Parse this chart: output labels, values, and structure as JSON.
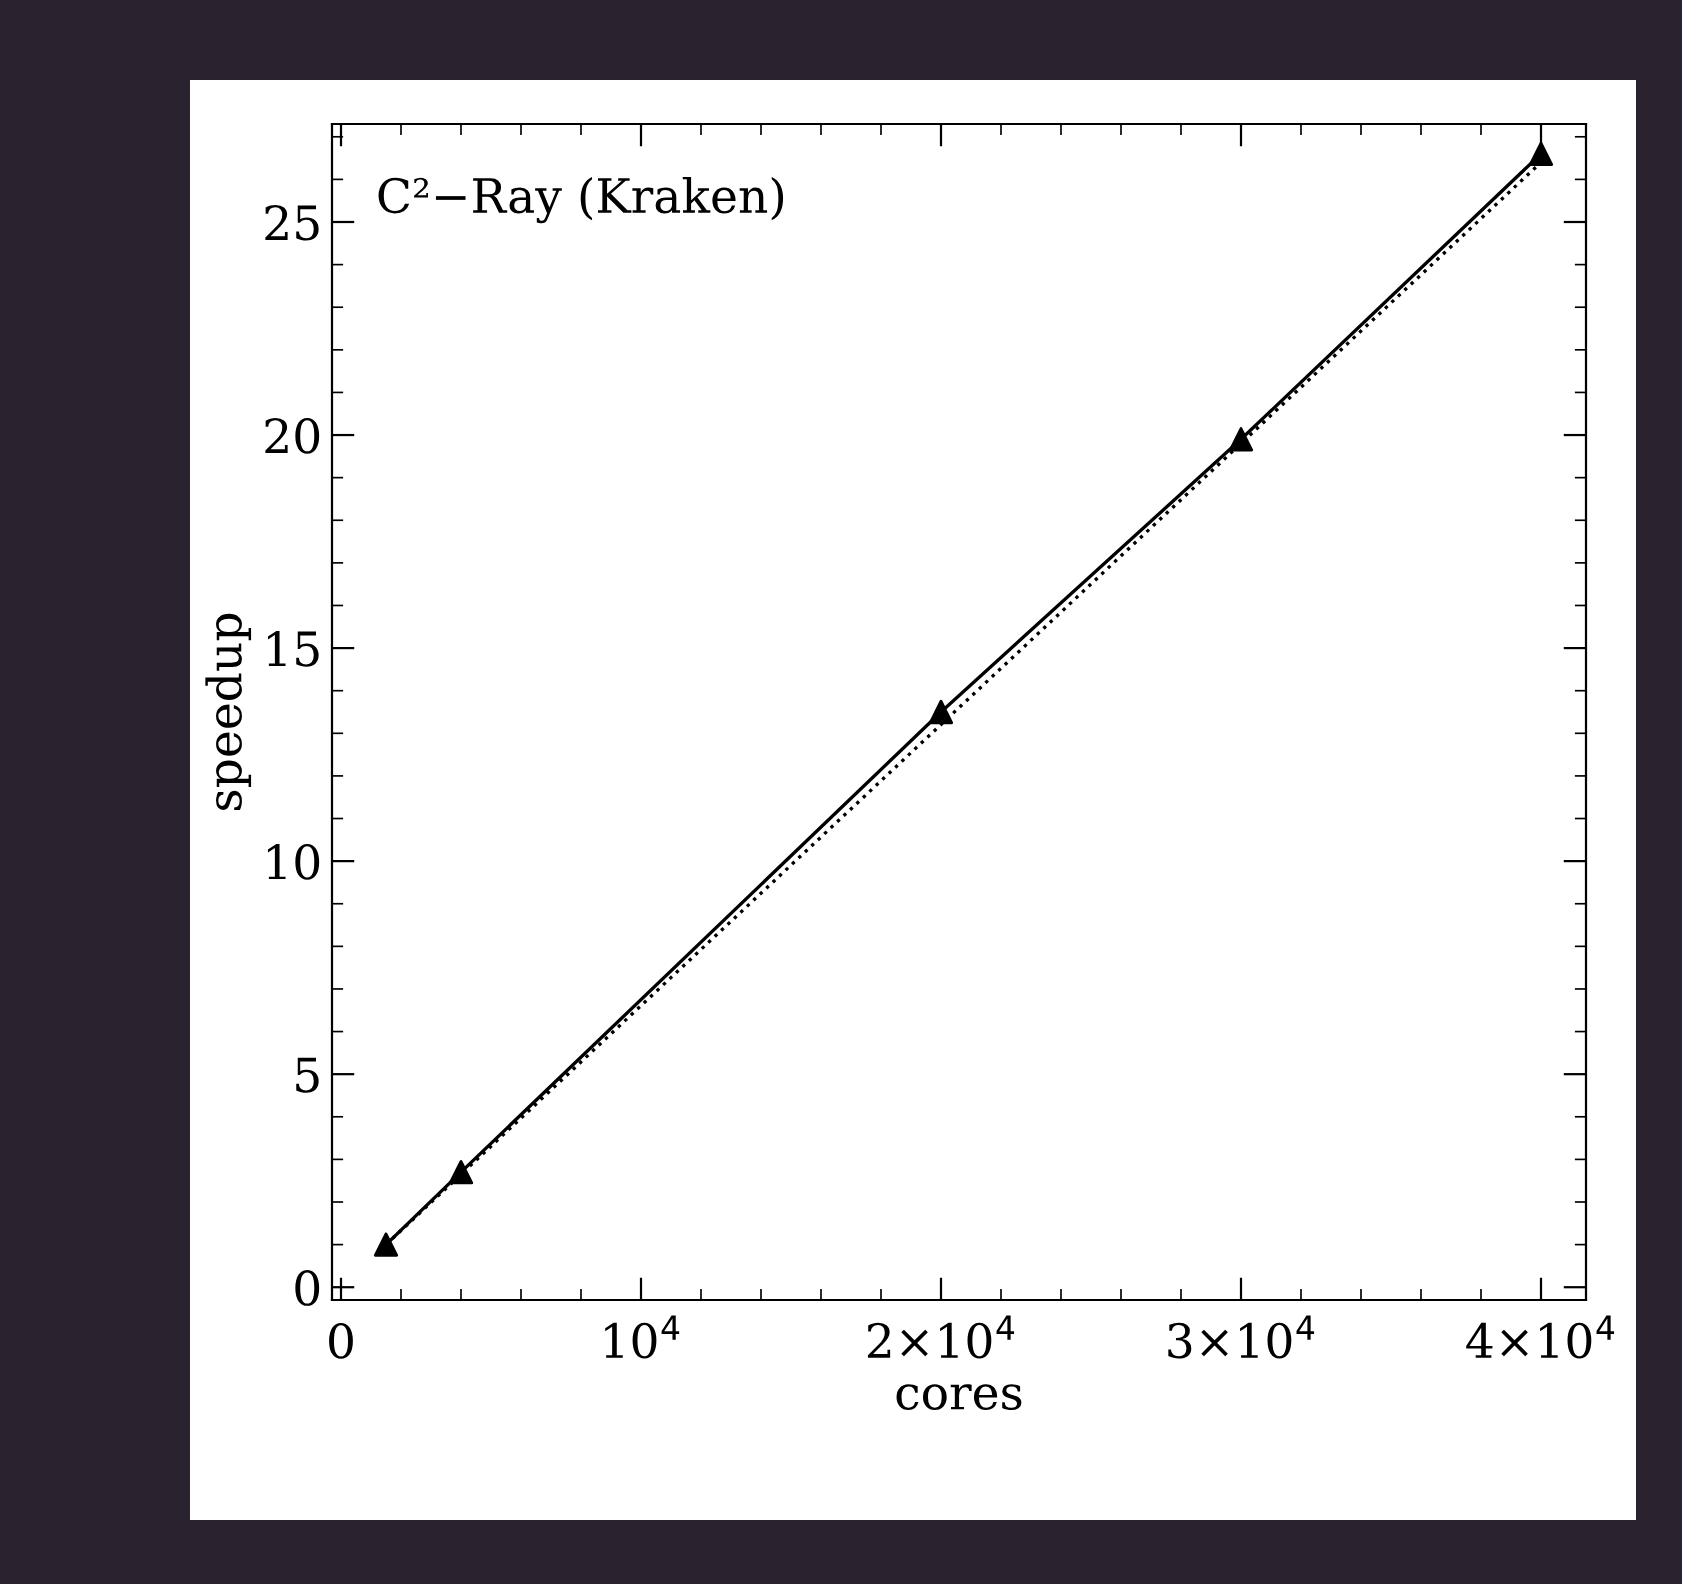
{
  "chart_data": {
    "type": "line",
    "xlabel": "cores",
    "ylabel": "speedup",
    "annotations": [
      "C²−Ray (Kraken)"
    ],
    "xlim": [
      -300,
      41500
    ],
    "ylim": [
      -0.3,
      27.3
    ],
    "xticks": [
      0,
      {
        "value": 10000,
        "label": "10$^{4}$"
      },
      {
        "value": 20000,
        "label": "2×10$^{4}$"
      },
      {
        "value": 30000,
        "label": "3×10$^{4}$"
      },
      {
        "value": 40000,
        "label": "4×10$^{4}$"
      }
    ],
    "yticks": [
      0,
      5,
      10,
      15,
      20,
      25
    ],
    "grid": false,
    "legend": false,
    "series": [
      {
        "x": [
          1500,
          4000,
          20000,
          30000,
          40000
        ],
        "values": [
          1,
          2.7,
          13.5,
          19.9,
          26.6
        ],
        "color": "#000000",
        "marker": "triangle",
        "line_style": "solid"
      },
      {
        "x": [
          1500,
          40000
        ],
        "values": [
          1,
          26.4
        ],
        "color": "#000000",
        "marker": "none",
        "line_style": "dotted"
      }
    ]
  }
}
